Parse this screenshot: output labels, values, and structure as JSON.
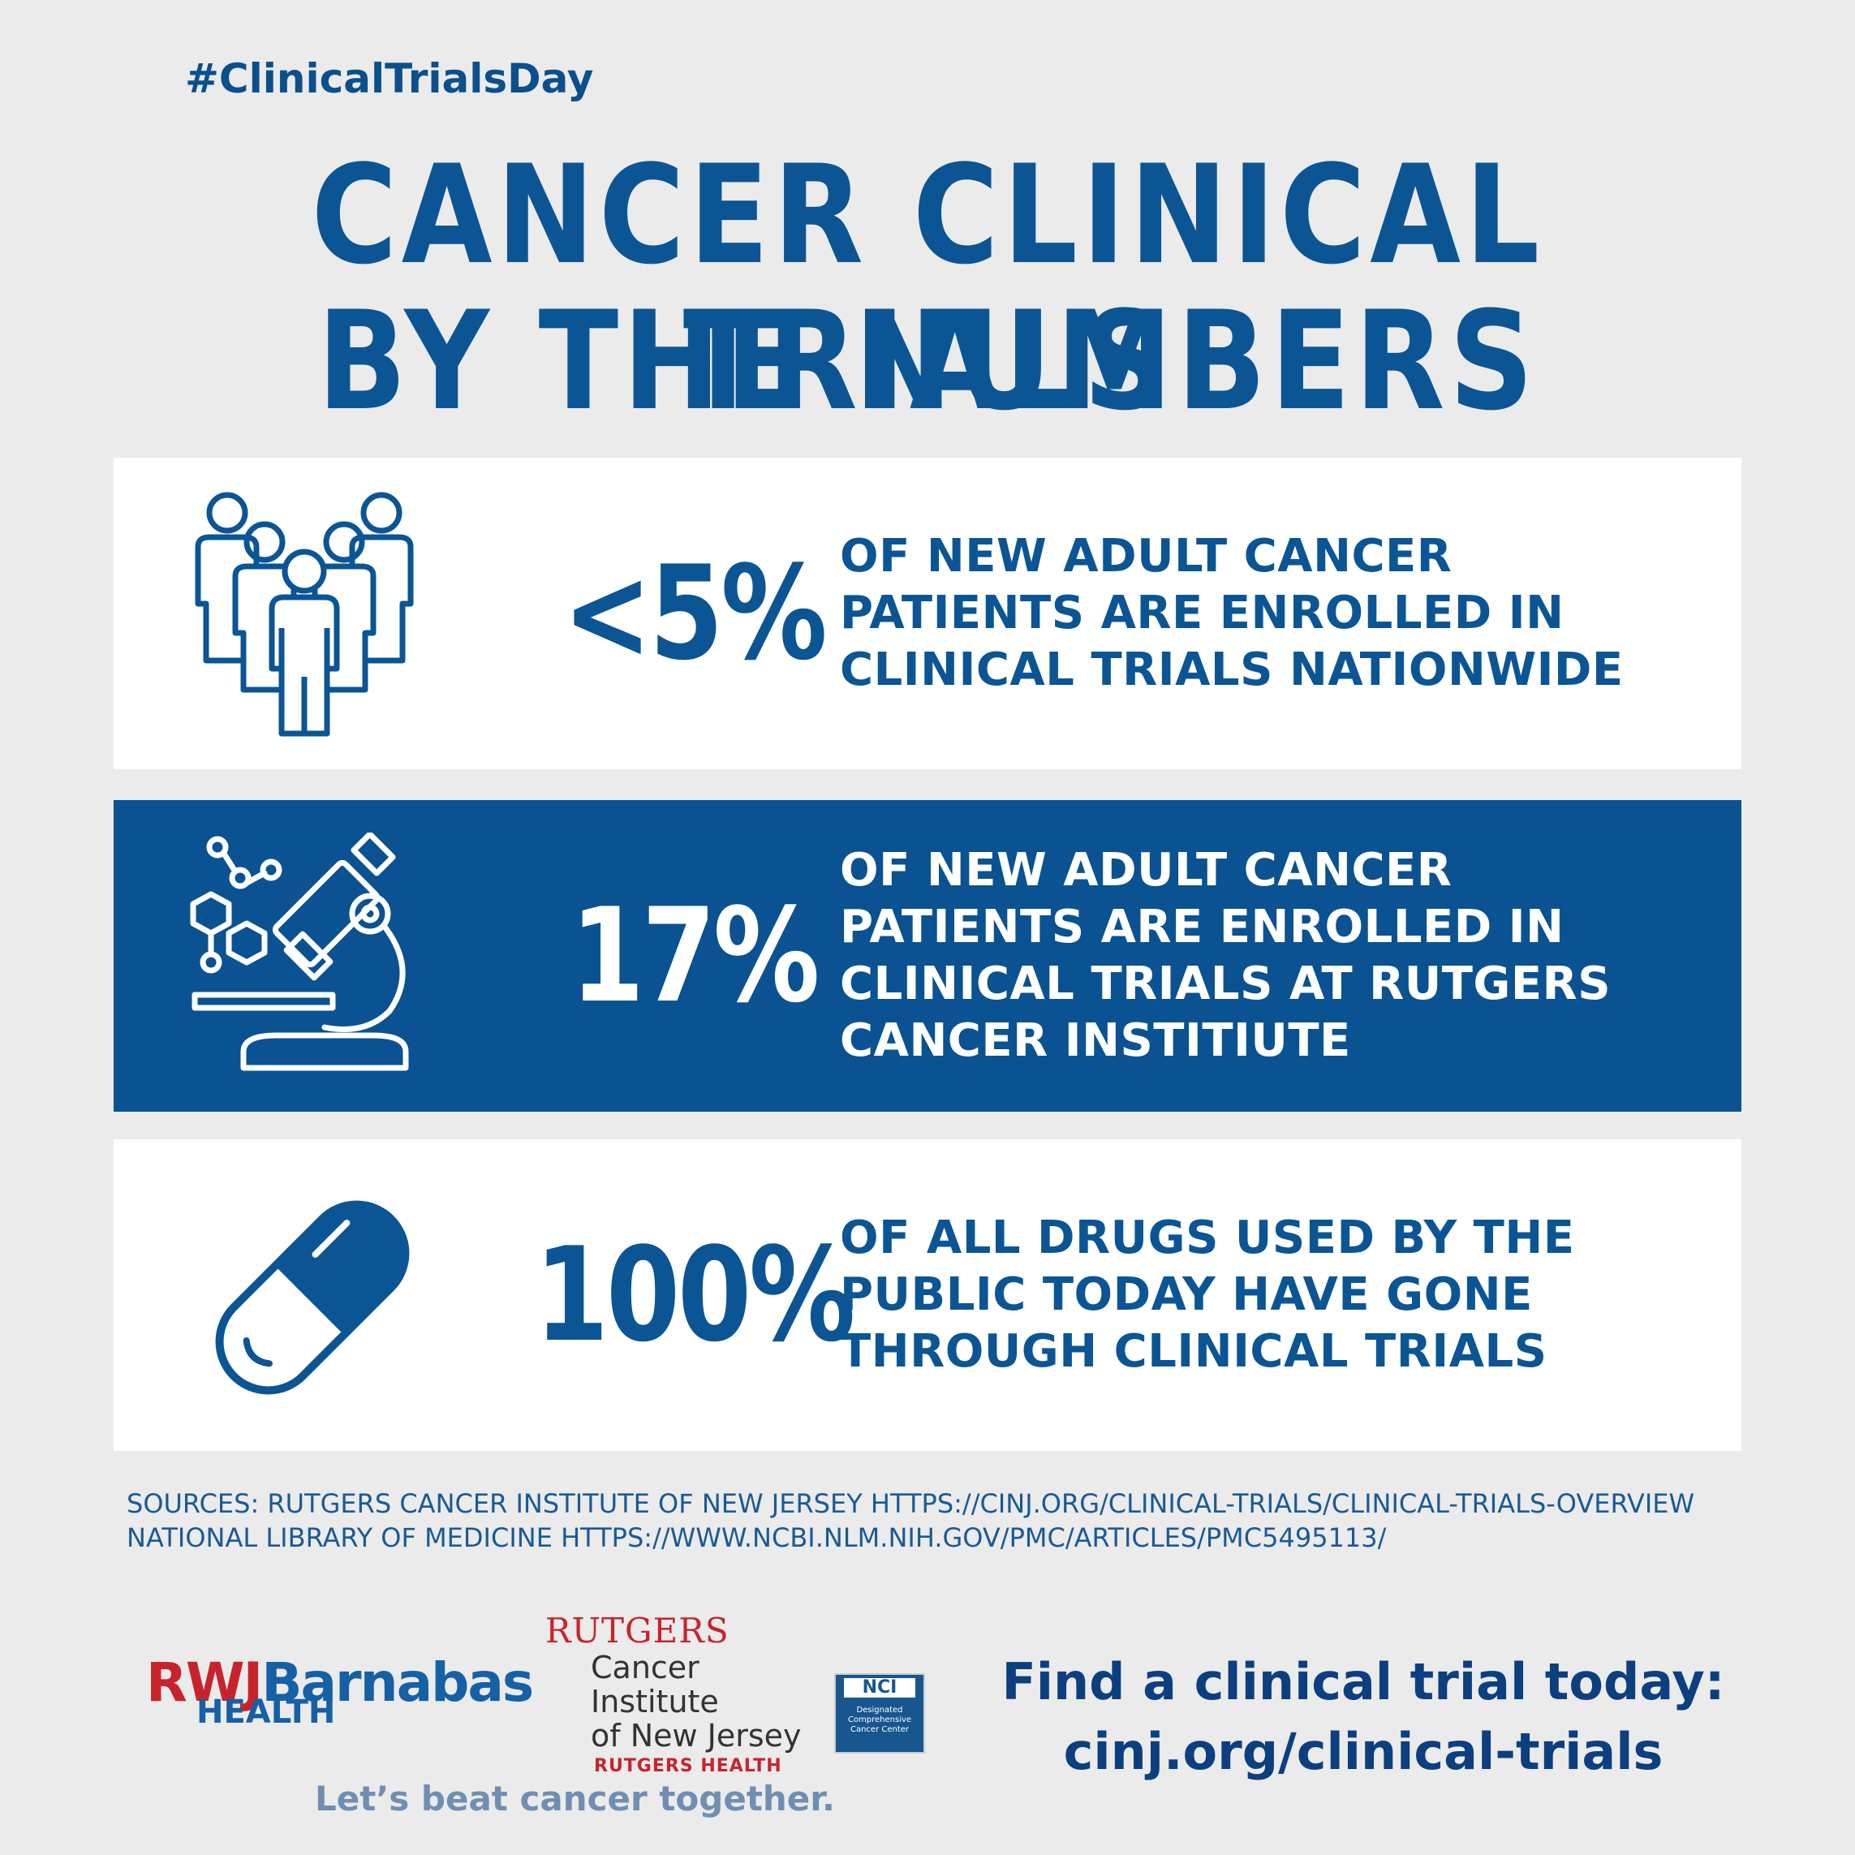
{
  "hashtag": "#ClinicalTrialsDay",
  "title": {
    "line1": "CANCER CLINICAL TRIALS",
    "line2": "BY THE NUMBERS"
  },
  "stats": [
    {
      "icon": "people-group-icon",
      "value": "<5%",
      "description": "OF NEW ADULT CANCER\nPATIENTS ARE ENROLLED IN\nCLINICAL TRIALS NATIONWIDE"
    },
    {
      "icon": "microscope-icon",
      "value": "17%",
      "description": "OF NEW ADULT CANCER\nPATIENTS ARE ENROLLED IN\nCLINICAL TRIALS AT RUTGERS\nCANCER INSTITIUTE"
    },
    {
      "icon": "pill-capsule-icon",
      "value": "100%",
      "description": "OF ALL DRUGS USED BY THE\nPUBLIC TODAY HAVE GONE\nTHROUGH CLINICAL TRIALS"
    }
  ],
  "sources": {
    "line1": "SOURCES: RUTGERS CANCER INSTITUTE OF NEW JERSEY HTTPS://CINJ.ORG/CLINICAL-TRIALS/CLINICAL-TRIALS-OVERVIEW",
    "line2": "NATIONAL LIBRARY OF MEDICINE HTTPS://WWW.NCBI.NLM.NIH.GOV/PMC/ARTICLES/PMC5495113/"
  },
  "logos": {
    "rwj_red": "RWJ",
    "rwj_blue": "Barnabas",
    "rwj_health": "HEALTH",
    "rutgers_name": "RUTGERS",
    "rutgers_line1": "Cancer Institute",
    "rutgers_line2": "of New Jersey",
    "rutgers_health": "RUTGERS HEALTH",
    "nci_badge": "NCI",
    "nci_small": "Designated Comprehensive Cancer Center"
  },
  "tagline": "Let’s beat cancer together.",
  "cta": {
    "line1": "Find a clinical trial today:",
    "line2": "cinj.org/clinical-trials"
  },
  "colors": {
    "background": "#ebebeb",
    "brand_blue": "#0a5291",
    "rutgers_red": "#c8232c"
  }
}
